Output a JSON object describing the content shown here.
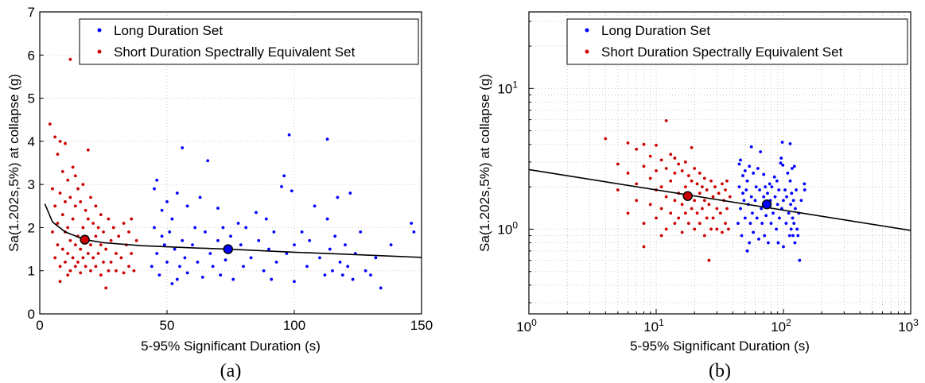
{
  "chart_data": [
    {
      "type": "scatter",
      "panel_label": "(a)",
      "xlabel": "5-95% Significant Duration (s)",
      "ylabel": "Sa(1.202s,5%) at collapse (g)",
      "xscale": "linear",
      "yscale": "linear",
      "xlim": [
        0,
        150
      ],
      "ylim": [
        0,
        7
      ],
      "xticks": [
        "0",
        "50",
        "100",
        "150"
      ],
      "yticks": [
        "0",
        "1",
        "2",
        "3",
        "4",
        "5",
        "6",
        "7"
      ],
      "grid": true,
      "legend_placement": "top-right",
      "series": [
        {
          "name": "Long Duration Set",
          "color": "#0000ff",
          "points": [
            [
              44,
              1.1
            ],
            [
              45,
              2.0
            ],
            [
              45,
              2.9
            ],
            [
              46,
              3.1
            ],
            [
              46,
              1.4
            ],
            [
              47,
              0.9
            ],
            [
              48,
              1.8
            ],
            [
              48,
              2.4
            ],
            [
              49,
              1.6
            ],
            [
              50,
              1.2
            ],
            [
              50,
              2.6
            ],
            [
              51,
              1.9
            ],
            [
              52,
              0.7
            ],
            [
              52,
              2.2
            ],
            [
              53,
              1.5
            ],
            [
              54,
              0.8
            ],
            [
              54,
              2.8
            ],
            [
              55,
              1.1
            ],
            [
              56,
              3.85
            ],
            [
              56,
              1.7
            ],
            [
              57,
              1.3
            ],
            [
              58,
              2.5
            ],
            [
              58,
              0.95
            ],
            [
              60,
              1.6
            ],
            [
              61,
              2.0
            ],
            [
              62,
              1.2
            ],
            [
              63,
              2.7
            ],
            [
              64,
              0.85
            ],
            [
              65,
              1.9
            ],
            [
              66,
              3.55
            ],
            [
              67,
              1.4
            ],
            [
              68,
              1.1
            ],
            [
              70,
              2.45
            ],
            [
              70,
              1.7
            ],
            [
              71,
              0.9
            ],
            [
              72,
              2.0
            ],
            [
              73,
              1.25
            ],
            [
              75,
              1.8
            ],
            [
              76,
              0.8
            ],
            [
              78,
              2.1
            ],
            [
              79,
              1.6
            ],
            [
              80,
              1.1
            ],
            [
              81,
              2.0
            ],
            [
              83,
              1.3
            ],
            [
              85,
              2.35
            ],
            [
              86,
              1.7
            ],
            [
              88,
              1.0
            ],
            [
              89,
              2.2
            ],
            [
              90,
              1.5
            ],
            [
              91,
              0.8
            ],
            [
              92,
              1.9
            ],
            [
              93,
              1.2
            ],
            [
              95,
              2.95
            ],
            [
              96,
              3.2
            ],
            [
              97,
              1.4
            ],
            [
              98,
              4.15
            ],
            [
              99,
              2.85
            ],
            [
              100,
              1.6
            ],
            [
              100,
              0.75
            ],
            [
              103,
              1.9
            ],
            [
              105,
              1.1
            ],
            [
              106,
              1.7
            ],
            [
              108,
              2.5
            ],
            [
              110,
              1.3
            ],
            [
              112,
              0.9
            ],
            [
              113,
              4.05
            ],
            [
              113,
              2.2
            ],
            [
              114,
              1.5
            ],
            [
              115,
              1.0
            ],
            [
              116,
              1.8
            ],
            [
              117,
              2.7
            ],
            [
              118,
              1.2
            ],
            [
              119,
              0.9
            ],
            [
              120,
              1.6
            ],
            [
              121,
              1.1
            ],
            [
              122,
              2.8
            ],
            [
              123,
              0.8
            ],
            [
              124,
              1.4
            ],
            [
              126,
              1.9
            ],
            [
              128,
              1.0
            ],
            [
              130,
              0.9
            ],
            [
              132,
              1.3
            ],
            [
              134,
              0.6
            ],
            [
              138,
              1.6
            ],
            [
              146,
              2.1
            ],
            [
              147,
              1.9
            ]
          ]
        },
        {
          "name": "Short Duration Spectrally Equivalent Set",
          "color": "#cc0000",
          "points": [
            [
              4,
              4.4
            ],
            [
              5,
              2.9
            ],
            [
              5,
              1.9
            ],
            [
              6,
              4.1
            ],
            [
              6,
              2.5
            ],
            [
              6,
              1.3
            ],
            [
              7,
              3.7
            ],
            [
              7,
              2.1
            ],
            [
              7,
              1.6
            ],
            [
              8,
              4.0
            ],
            [
              8,
              2.8
            ],
            [
              8,
              1.1
            ],
            [
              8,
              0.75
            ],
            [
              9,
              3.3
            ],
            [
              9,
              2.3
            ],
            [
              9,
              1.5
            ],
            [
              10,
              3.95
            ],
            [
              10,
              2.6
            ],
            [
              10,
              1.9
            ],
            [
              10,
              1.2
            ],
            [
              11,
              3.1
            ],
            [
              11,
              2.0
            ],
            [
              11,
              1.4
            ],
            [
              11,
              0.9
            ],
            [
              12,
              5.9
            ],
            [
              12,
              2.7
            ],
            [
              12,
              1.7
            ],
            [
              12,
              1.0
            ],
            [
              13,
              3.4
            ],
            [
              13,
              2.2
            ],
            [
              13,
              1.3
            ],
            [
              14,
              3.2
            ],
            [
              14,
              2.5
            ],
            [
              14,
              1.6
            ],
            [
              14,
              1.1
            ],
            [
              15,
              2.9
            ],
            [
              15,
              1.8
            ],
            [
              15,
              1.2
            ],
            [
              16,
              2.6
            ],
            [
              16,
              1.5
            ],
            [
              16,
              0.95
            ],
            [
              17,
              3.0
            ],
            [
              17,
              2.0
            ],
            [
              17,
              1.3
            ],
            [
              18,
              2.4
            ],
            [
              18,
              1.7
            ],
            [
              18,
              1.1
            ],
            [
              19,
              3.8
            ],
            [
              19,
              2.2
            ],
            [
              19,
              1.4
            ],
            [
              20,
              2.7
            ],
            [
              20,
              1.6
            ],
            [
              20,
              1.0
            ],
            [
              21,
              2.1
            ],
            [
              21,
              1.3
            ],
            [
              22,
              2.5
            ],
            [
              22,
              1.8
            ],
            [
              22,
              1.1
            ],
            [
              23,
              2.0
            ],
            [
              23,
              1.4
            ],
            [
              24,
              2.3
            ],
            [
              24,
              1.6
            ],
            [
              24,
              0.9
            ],
            [
              25,
              1.9
            ],
            [
              25,
              1.2
            ],
            [
              26,
              0.6
            ],
            [
              26,
              1.5
            ],
            [
              27,
              2.2
            ],
            [
              27,
              1.0
            ],
            [
              28,
              1.7
            ],
            [
              28,
              1.2
            ],
            [
              29,
              2.0
            ],
            [
              30,
              1.4
            ],
            [
              30,
              1.0
            ],
            [
              31,
              1.8
            ],
            [
              32,
              1.3
            ],
            [
              33,
              2.1
            ],
            [
              33,
              0.95
            ],
            [
              34,
              1.6
            ],
            [
              35,
              1.9
            ],
            [
              35,
              1.1
            ],
            [
              36,
              2.2
            ],
            [
              36,
              1.4
            ],
            [
              37,
              1.0
            ],
            [
              38,
              1.7
            ]
          ]
        }
      ],
      "fit_curve": {
        "color": "#000000",
        "x": [
          2,
          5,
          10,
          17.7,
          25,
          40,
          60,
          74,
          100,
          125,
          150
        ],
        "y": [
          2.55,
          2.13,
          1.9,
          1.72,
          1.65,
          1.58,
          1.53,
          1.5,
          1.43,
          1.37,
          1.31
        ]
      },
      "highlight_points": [
        {
          "x": 17.7,
          "y": 1.72,
          "color": "#cc0000"
        },
        {
          "x": 74,
          "y": 1.5,
          "color": "#0000ff"
        }
      ]
    },
    {
      "type": "scatter",
      "panel_label": "(b)",
      "xlabel": "5-95% Significant Duration (s)",
      "ylabel": "Sa(1.202s,5%) at collapse (g)",
      "xscale": "log",
      "yscale": "log",
      "xlim": [
        1,
        1000
      ],
      "ylim": [
        0.25,
        35
      ],
      "xticks": [
        "10^0",
        "10^1",
        "10^2",
        "10^3"
      ],
      "yticks": [
        "10^0",
        "10^1"
      ],
      "grid": true,
      "legend_placement": "top-right",
      "series_ref": "same points as panel (a)",
      "fit_line": {
        "color": "#000000",
        "x": [
          1,
          1000
        ],
        "y": [
          2.65,
          0.98
        ]
      },
      "highlight_points": [
        {
          "x": 17.7,
          "y": 1.72,
          "color": "#cc0000"
        },
        {
          "x": 74,
          "y": 1.5,
          "color": "#0000ff"
        }
      ]
    }
  ]
}
